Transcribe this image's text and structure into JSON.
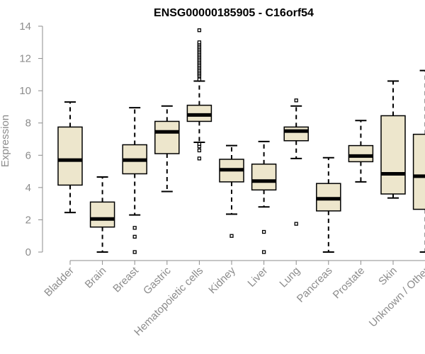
{
  "chart_data": {
    "type": "boxplot",
    "title": "ENSG00000185905 - C16orf54",
    "xlabel": "",
    "ylabel": "Expression",
    "ylim": [
      0,
      14
    ],
    "yticks": [
      0,
      2,
      4,
      6,
      8,
      10,
      12,
      14
    ],
    "colors": {
      "box_fill": "#ede6cc",
      "box_stroke": "#000000",
      "axis": "#8c8c8c"
    },
    "categories": [
      "Bladder",
      "Brain",
      "Breast",
      "Gastric",
      "Hematopoietic cells",
      "Kidney",
      "Liver",
      "Lung",
      "Pancreas",
      "Prostate",
      "Skin",
      "Unknown / Other"
    ],
    "boxes": [
      {
        "label": "Bladder",
        "min": 2.45,
        "q1": 4.15,
        "median": 5.7,
        "q3": 7.75,
        "max": 9.3,
        "outliers": []
      },
      {
        "label": "Brain",
        "min": 0.0,
        "q1": 1.55,
        "median": 2.05,
        "q3": 3.1,
        "max": 4.65,
        "outliers": []
      },
      {
        "label": "Breast",
        "min": 2.3,
        "q1": 4.85,
        "median": 5.7,
        "q3": 6.65,
        "max": 8.95,
        "outliers": [
          1.5,
          0.95,
          0.0
        ]
      },
      {
        "label": "Gastric",
        "min": 3.75,
        "q1": 6.1,
        "median": 7.45,
        "q3": 8.1,
        "max": 9.05,
        "outliers": []
      },
      {
        "label": "Hematopoietic cells",
        "min": 6.8,
        "q1": 8.1,
        "median": 8.5,
        "q3": 9.1,
        "max": 10.6,
        "outliers": [
          5.8,
          6.3,
          6.55,
          6.7,
          10.7,
          10.9,
          11.0,
          11.1,
          11.2,
          11.3,
          11.4,
          11.5,
          11.6,
          11.7,
          11.8,
          11.9,
          12.0,
          12.1,
          12.2,
          12.3,
          12.4,
          12.5,
          12.6,
          12.7,
          12.8,
          12.9,
          13.0,
          13.75
        ]
      },
      {
        "label": "Kidney",
        "min": 2.35,
        "q1": 4.35,
        "median": 5.1,
        "q3": 5.75,
        "max": 6.6,
        "outliers": [
          1.0
        ]
      },
      {
        "label": "Liver",
        "min": 2.8,
        "q1": 3.85,
        "median": 4.4,
        "q3": 5.45,
        "max": 6.85,
        "outliers": [
          1.25,
          0.0
        ]
      },
      {
        "label": "Lung",
        "min": 5.8,
        "q1": 6.9,
        "median": 7.5,
        "q3": 7.75,
        "max": 9.05,
        "outliers": [
          9.4,
          1.75
        ]
      },
      {
        "label": "Pancreas",
        "min": 0.0,
        "q1": 2.55,
        "median": 3.3,
        "q3": 4.25,
        "max": 5.85,
        "outliers": []
      },
      {
        "label": "Prostate",
        "min": 4.35,
        "q1": 5.6,
        "median": 5.95,
        "q3": 6.6,
        "max": 8.15,
        "outliers": []
      },
      {
        "label": "Skin",
        "min": 3.35,
        "q1": 3.6,
        "median": 4.85,
        "q3": 8.45,
        "max": 10.6,
        "outliers": []
      },
      {
        "label": "Unknown / Other",
        "min": 0.0,
        "q1": 2.65,
        "median": 4.7,
        "q3": 7.3,
        "max": 11.25,
        "outliers": []
      }
    ]
  }
}
